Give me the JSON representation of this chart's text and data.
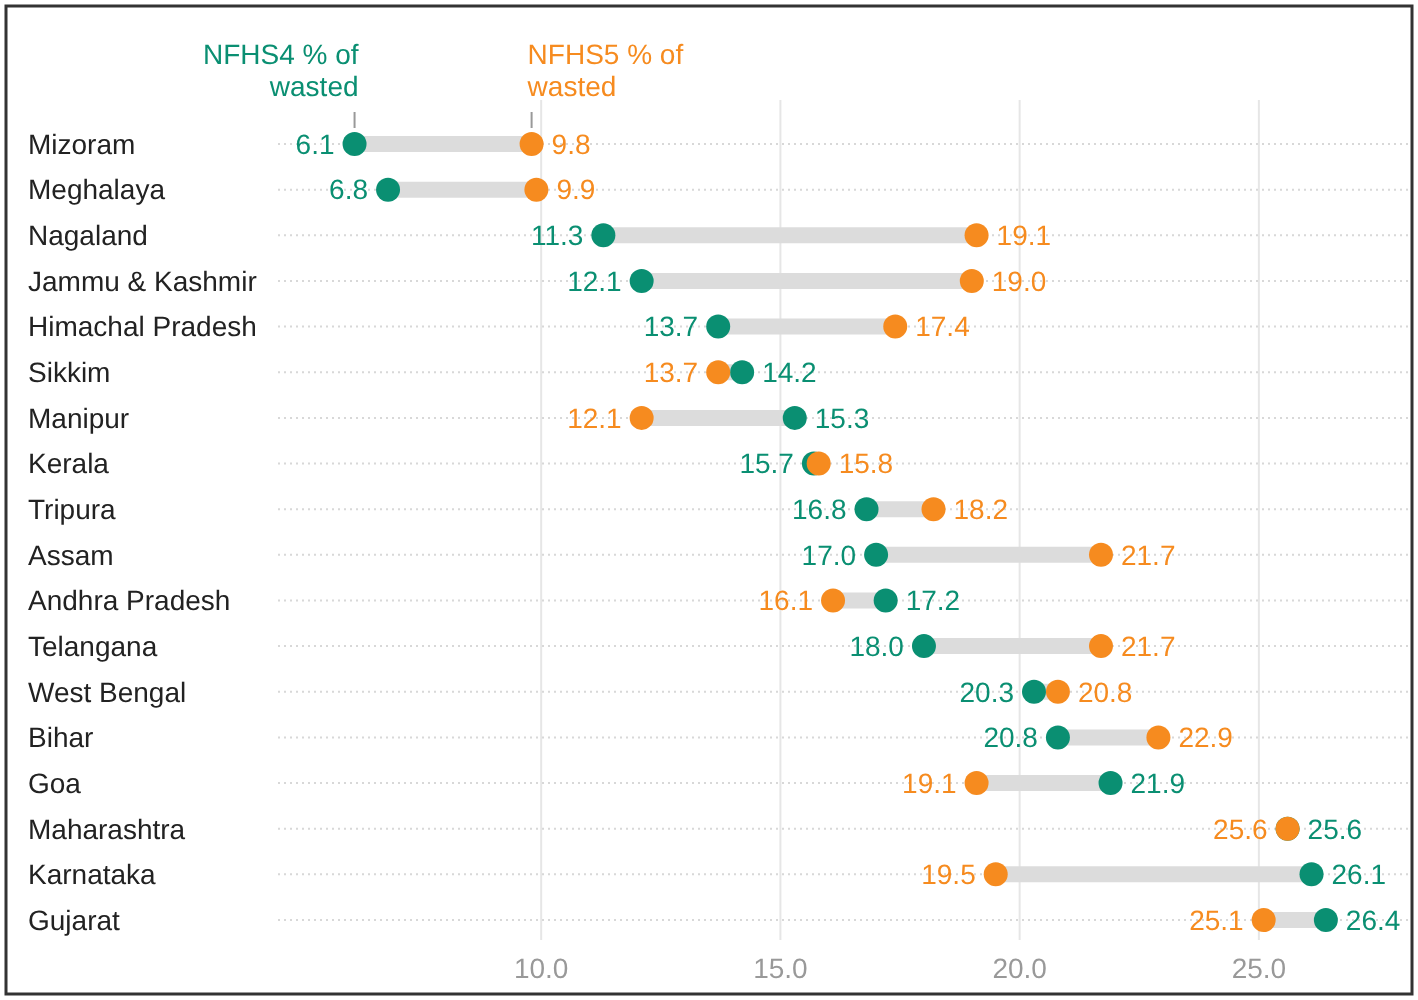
{
  "chart_data": {
    "type": "scatter",
    "orientation": "horizontal",
    "categories": [
      "Mizoram",
      "Meghalaya",
      "Nagaland",
      "Jammu & Kashmir",
      "Himachal Pradesh",
      "Sikkim",
      "Manipur",
      "Kerala",
      "Tripura",
      "Assam",
      "Andhra Pradesh",
      "Telangana",
      "West Bengal",
      "Bihar",
      "Goa",
      "Maharashtra",
      "Karnataka",
      "Gujarat"
    ],
    "series": [
      {
        "name": "NFHS4 % of wasted",
        "color": "#0a8f72",
        "values": [
          6.1,
          6.8,
          11.3,
          12.1,
          13.7,
          14.2,
          15.3,
          15.7,
          16.8,
          17.0,
          17.2,
          18.0,
          20.3,
          20.8,
          21.9,
          25.6,
          26.1,
          26.4
        ],
        "value_labels": [
          "6.1",
          "6.8",
          "11.3",
          "12.1",
          "13.7",
          "14.2",
          "15.3",
          "15.7",
          "16.8",
          "17.0",
          "17.2",
          "18.0",
          "20.3",
          "20.8",
          "21.9",
          "25.6",
          "26.1",
          "26.4"
        ]
      },
      {
        "name": "NFHS5 % of wasted",
        "color": "#f68b1f",
        "values": [
          9.8,
          9.9,
          19.1,
          19.0,
          17.4,
          13.7,
          12.1,
          15.8,
          18.2,
          21.7,
          16.1,
          21.7,
          20.8,
          22.9,
          19.1,
          25.6,
          19.5,
          25.1
        ],
        "value_labels": [
          "9.8",
          "9.9",
          "19.1",
          "19.0",
          "17.4",
          "13.7",
          "12.1",
          "15.8",
          "18.2",
          "21.7",
          "16.1",
          "21.7",
          "20.8",
          "22.9",
          "19.1",
          "25.6",
          "19.5",
          "25.1"
        ]
      }
    ],
    "xlim": [
      4.5,
      28.2
    ],
    "xticks": [
      {
        "value": 10,
        "label": "10.0"
      },
      {
        "value": 15,
        "label": "15.0"
      },
      {
        "value": 20,
        "label": "20.0"
      },
      {
        "value": 25,
        "label": "25.0"
      }
    ],
    "grid": true,
    "legend": "top",
    "marker": "circle"
  }
}
